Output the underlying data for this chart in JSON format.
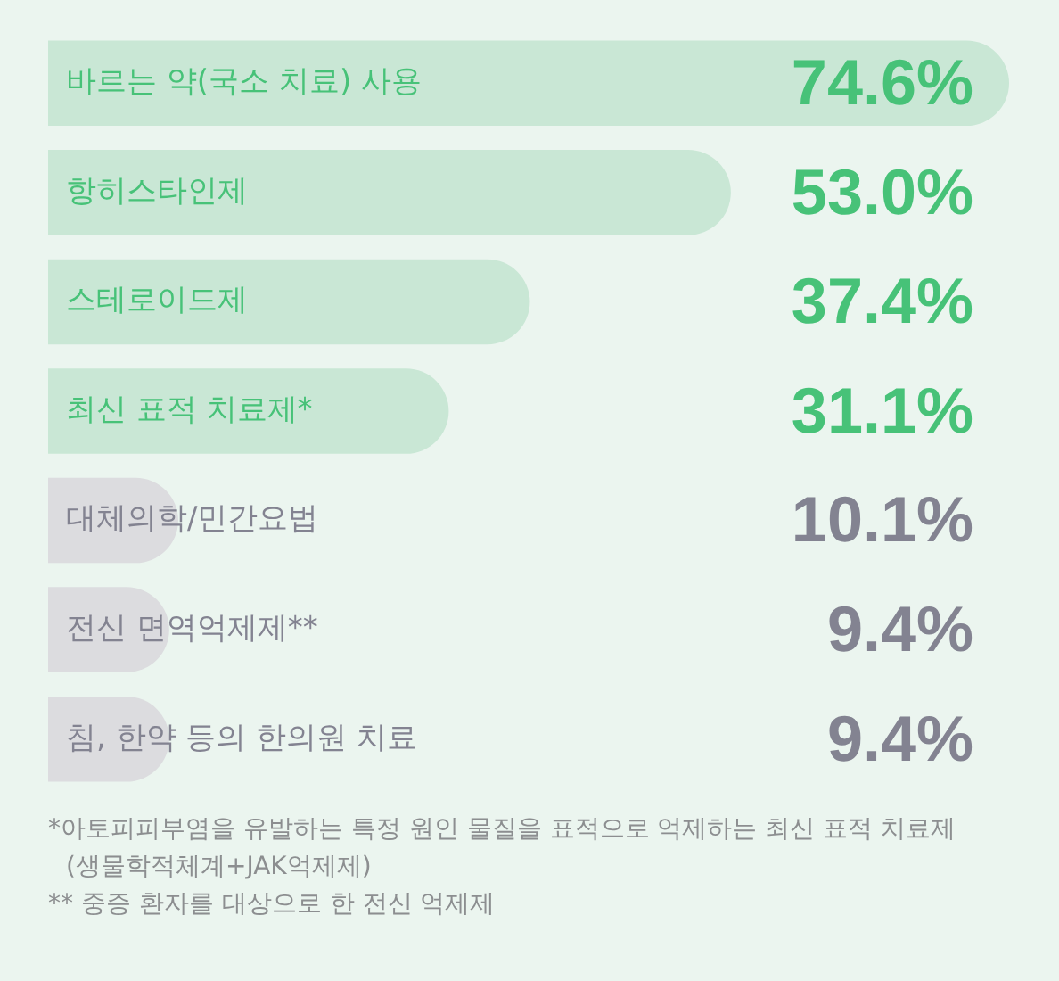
{
  "chart_data": {
    "type": "bar",
    "orientation": "horizontal",
    "categories": [
      "바르는 약(국소 치료) 사용",
      "항히스타인제",
      "스테로이드제",
      "최신 표적 치료제*",
      "대체의학/민간요법",
      "전신 면역억제제**",
      "침, 한약 등의 한의원 치료"
    ],
    "values": [
      74.6,
      53.0,
      37.4,
      31.1,
      10.1,
      9.4,
      9.4
    ],
    "value_labels": [
      "74.6%",
      "53.0%",
      "37.4%",
      "31.1%",
      "10.1%",
      "9.4%",
      "9.4%"
    ],
    "colors": [
      "#c9e7d5",
      "#c9e7d5",
      "#c9e7d5",
      "#c9e7d5",
      "#dcdcdf",
      "#dcdcdf",
      "#dcdcdf"
    ],
    "annotations": [
      "*아토피피부염을 유발하는 특정 원인 물질을 표적으로 억제하는 최신 표적 치료제",
      "(생물학적체계+JAK억제제)",
      "** 중증 환자를 대상으로 한 전신 억제제"
    ]
  }
}
